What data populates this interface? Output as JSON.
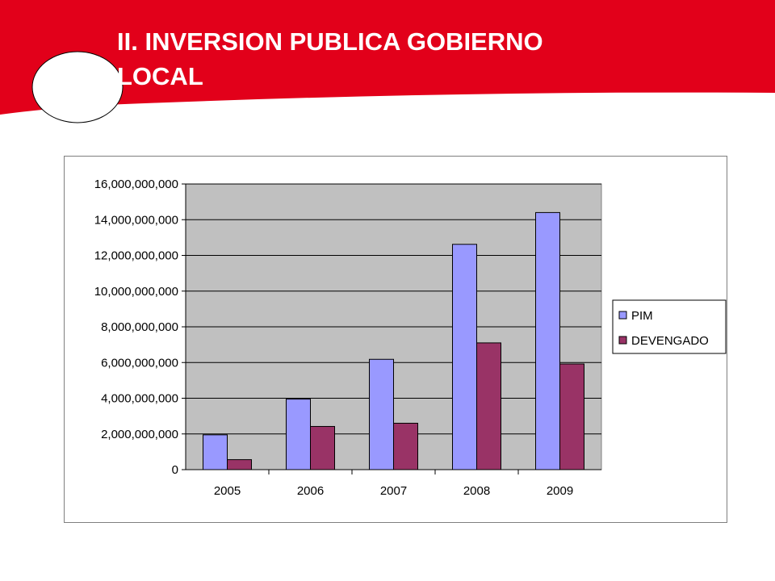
{
  "slide": {
    "title_line1": "II. INVERSION PUBLICA GOBIERNO",
    "title_line2": "LOCAL",
    "banner_color": "#e2001a"
  },
  "chart_data": {
    "type": "bar",
    "categories": [
      "2005",
      "2006",
      "2007",
      "2008",
      "2009"
    ],
    "series": [
      {
        "name": "PIM",
        "color": "#9999ff",
        "values": [
          1950000000,
          3950000000,
          6180000000,
          12620000000,
          14400000000
        ]
      },
      {
        "name": "DEVENGADO",
        "color": "#993366",
        "values": [
          560000000,
          2420000000,
          2600000000,
          7100000000,
          5920000000
        ]
      }
    ],
    "ylim": [
      0,
      16000000000
    ],
    "yticks": [
      "0",
      "2,000,000,000",
      "4,000,000,000",
      "6,000,000,000",
      "8,000,000,000",
      "10,000,000,000",
      "12,000,000,000",
      "14,000,000,000",
      "16,000,000,000"
    ],
    "ytick_values": [
      0,
      2000000000,
      4000000000,
      6000000000,
      8000000000,
      10000000000,
      12000000000,
      14000000000,
      16000000000
    ],
    "plot_background": "#c0c0c0",
    "grid": true,
    "legend_position": "right"
  }
}
